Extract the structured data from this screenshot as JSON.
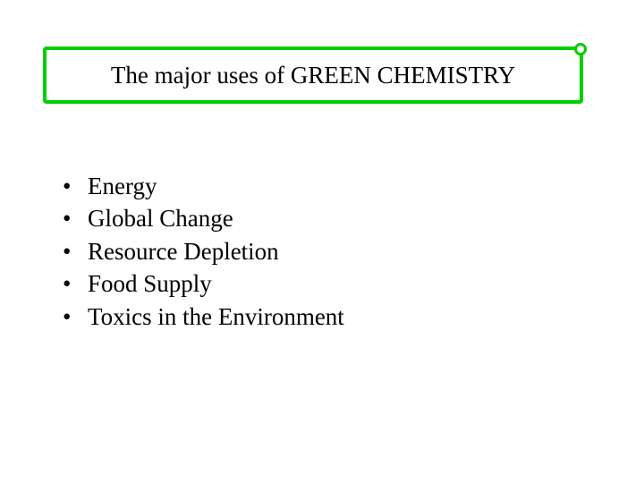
{
  "title": {
    "text": "The major uses of GREEN CHEMISTRY",
    "border_color": "#00d000",
    "corner_color": "#00d000",
    "text_color": "#000000",
    "fontsize": 27
  },
  "bullets": {
    "items": [
      "Energy",
      "Global Change",
      "Resource Depletion",
      "Food Supply",
      "Toxics in the Environment"
    ],
    "bullet_char": "•",
    "text_color": "#000000",
    "fontsize": 27
  },
  "background_color": "#ffffff"
}
